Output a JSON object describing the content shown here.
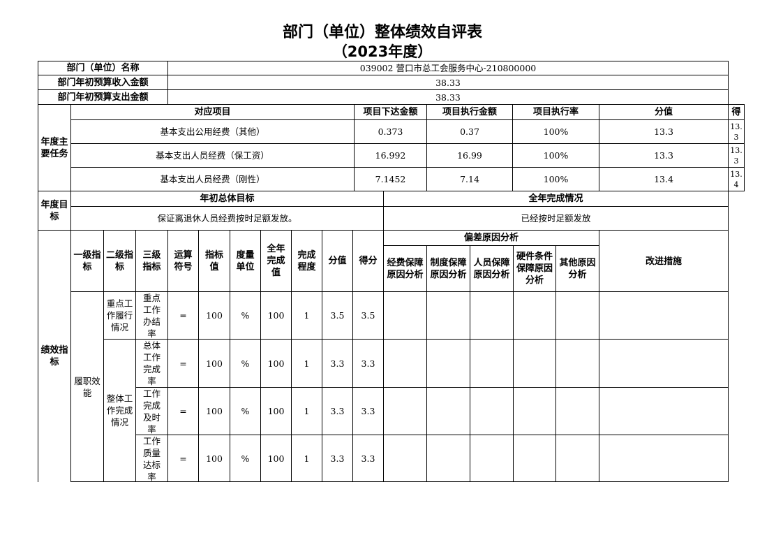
{
  "title": "部门（单位）整体绩效自评表",
  "subtitle": "（2023年度）",
  "basic": {
    "name_label": "部门（单位）名称",
    "name_value": "039002 营口市总工会服务中心-210800000",
    "income_label": "部门年初预算收入金额",
    "income_value": "38.33",
    "expense_label": "部门年初预算支出金额",
    "expense_value": "38.33"
  },
  "tasks": {
    "section_label": "年度主要任务",
    "headers": [
      "对应项目",
      "项目下达金额",
      "项目执行金额",
      "项目执行率",
      "分值",
      "得"
    ],
    "rows": [
      {
        "item": "基本支出公用经费（其他）",
        "allocated": "0.373",
        "executed": "0.37",
        "rate": "100%",
        "score_value": "13.3",
        "score": "13.3"
      },
      {
        "item": "基本支出人员经费（保工资）",
        "allocated": "16.992",
        "executed": "16.99",
        "rate": "100%",
        "score_value": "13.3",
        "score": "13.3"
      },
      {
        "item": "基本支出人员经费（刚性）",
        "allocated": "7.1452",
        "executed": "7.14",
        "rate": "100%",
        "score_value": "13.4",
        "score": "13.4"
      }
    ]
  },
  "objectives": {
    "section_label": "年度目标",
    "goal_header": "年初总体目标",
    "done_header": "全年完成情况",
    "goal": "保证离退休人员经费按时足额发放。",
    "done": "已经按时足额发放"
  },
  "indicators": {
    "section_label": "绩效指标",
    "headers": [
      "一级指标",
      "二级指标",
      "三级指标",
      "运算符号",
      "指标值",
      "度量单位",
      "全年完成值",
      "完成程度",
      "分值",
      "得分"
    ],
    "deviation_header": "偏差原因分析",
    "deviation_cols": [
      "经费保障原因分析",
      "制度保障原因分析",
      "人员保障原因分析",
      "硬件条件保障原因分析",
      "其他原因分析"
    ],
    "improve_header": "改进措施",
    "level1": "履职效能",
    "level2": [
      "重点工作履行情况",
      "整体工作完成情况"
    ],
    "rows": [
      {
        "level3": "重点工作办结率",
        "op": "=",
        "target": "100",
        "unit": "%",
        "actual": "100",
        "degree": "1",
        "score_value": "3.5",
        "score": "3.5"
      },
      {
        "level3": "总体工作完成率",
        "op": "=",
        "target": "100",
        "unit": "%",
        "actual": "100",
        "degree": "1",
        "score_value": "3.3",
        "score": "3.3"
      },
      {
        "level3": "工作完成及时率",
        "op": "=",
        "target": "100",
        "unit": "%",
        "actual": "100",
        "degree": "1",
        "score_value": "3.3",
        "score": "3.3"
      },
      {
        "level3": "工作质量达标率",
        "op": "=",
        "target": "100",
        "unit": "%",
        "actual": "100",
        "degree": "1",
        "score_value": "3.3",
        "score": "3.3"
      }
    ]
  }
}
